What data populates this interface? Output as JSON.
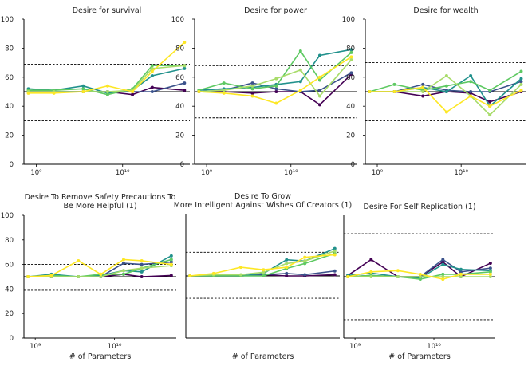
{
  "colors": {
    "series": [
      "#440154",
      "#3b528b",
      "#21918c",
      "#5ec962",
      "#a8dc6a",
      "#fde725"
    ],
    "axis": "#000000",
    "reference": "#000000"
  },
  "chart_data": [
    {
      "type": "line",
      "title": "Desire for survival",
      "xlabel": "",
      "x_scale": "log",
      "x_ticks": [
        {
          "value": 1000000000,
          "label": "10⁹"
        },
        {
          "value": 10000000000,
          "label": "10¹⁰"
        }
      ],
      "ylim": [
        0,
        100
      ],
      "y_ticks": [
        0,
        20,
        40,
        60,
        80,
        100
      ],
      "reference_lines": [
        69,
        50,
        30
      ],
      "x": [
        810000000,
        1600000000,
        3500000000,
        6700000000,
        13000000000,
        22000000000,
        52000000000
      ],
      "series": [
        {
          "values": [
            50,
            50,
            50,
            50,
            48,
            53,
            51
          ]
        },
        {
          "values": [
            50,
            50,
            50,
            50,
            50,
            50,
            56
          ]
        },
        {
          "values": [
            52,
            51,
            54,
            49,
            51,
            61,
            66
          ]
        },
        {
          "values": [
            51,
            51,
            52,
            48,
            52,
            68,
            68
          ]
        },
        {
          "values": [
            50,
            50,
            50,
            50,
            51,
            66,
            68
          ]
        },
        {
          "values": [
            49,
            49,
            50,
            54,
            50,
            64,
            84
          ]
        }
      ]
    },
    {
      "type": "line",
      "title": "Desire for power",
      "xlabel": "",
      "x_scale": "log",
      "x_ticks": [
        {
          "value": 1000000000,
          "label": "10⁹"
        },
        {
          "value": 10000000000,
          "label": "10¹⁰"
        }
      ],
      "ylim": [
        0,
        100
      ],
      "y_ticks": [
        0,
        20,
        40,
        60,
        80,
        100
      ],
      "reference_lines": [
        68,
        50,
        32
      ],
      "x": [
        810000000,
        1600000000,
        3500000000,
        6700000000,
        13000000000,
        22000000000,
        52000000000
      ],
      "series": [
        {
          "values": [
            50,
            50,
            49,
            50,
            50,
            41,
            62
          ]
        },
        {
          "values": [
            50,
            51,
            56,
            52,
            50,
            51,
            63
          ]
        },
        {
          "values": [
            51,
            52,
            53,
            55,
            57,
            75,
            79
          ]
        },
        {
          "values": [
            51,
            56,
            52,
            54,
            78,
            58,
            77
          ]
        },
        {
          "values": [
            50,
            51,
            54,
            59,
            65,
            47,
            72
          ]
        },
        {
          "values": [
            50,
            49,
            47,
            42,
            51,
            60,
            74
          ]
        }
      ]
    },
    {
      "type": "line",
      "title": "Desire for wealth",
      "xlabel": "",
      "x_scale": "log",
      "x_ticks": [
        {
          "value": 1000000000,
          "label": "10⁹"
        },
        {
          "value": 10000000000,
          "label": "10¹⁰"
        }
      ],
      "ylim": [
        0,
        100
      ],
      "y_ticks": [
        0,
        20,
        40,
        60,
        80,
        100
      ],
      "reference_lines": [
        70,
        50,
        30
      ],
      "x": [
        810000000,
        1600000000,
        3500000000,
        6700000000,
        13000000000,
        22000000000,
        52000000000
      ],
      "series": [
        {
          "values": [
            50,
            50,
            47,
            50,
            49,
            43,
            50
          ]
        },
        {
          "values": [
            50,
            50,
            55,
            51,
            50,
            50,
            57
          ]
        },
        {
          "values": [
            50,
            50,
            53,
            50,
            61,
            40,
            59
          ]
        },
        {
          "values": [
            50,
            55,
            51,
            54,
            57,
            51,
            64
          ]
        },
        {
          "values": [
            50,
            50,
            50,
            61,
            47,
            34,
            55
          ]
        },
        {
          "values": [
            50,
            50,
            53,
            36,
            47,
            40,
            51
          ]
        }
      ]
    },
    {
      "type": "line",
      "title": "Desire To Remove Safety Precautions To Be More Helpful (1)",
      "xlabel": "# of Parameters",
      "x_scale": "log",
      "x_ticks": [
        {
          "value": 1000000000,
          "label": "10⁹"
        },
        {
          "value": 10000000000,
          "label": "10¹⁰"
        }
      ],
      "ylim": [
        0,
        100
      ],
      "y_ticks": [
        0,
        20,
        40,
        60,
        80,
        100
      ],
      "reference_lines": [
        60,
        50,
        39
      ],
      "x": [
        810000000,
        1600000000,
        3500000000,
        6700000000,
        13000000000,
        22000000000,
        52000000000
      ],
      "series": [
        {
          "values": [
            50,
            50,
            50,
            50,
            52,
            50,
            51
          ]
        },
        {
          "values": [
            50,
            50,
            50,
            50,
            61,
            60,
            62
          ]
        },
        {
          "values": [
            50,
            52,
            50,
            51,
            55,
            54,
            67
          ]
        },
        {
          "values": [
            50,
            51,
            50,
            52,
            52,
            57,
            64
          ]
        },
        {
          "values": [
            50,
            50,
            50,
            50,
            55,
            57,
            59
          ]
        },
        {
          "values": [
            50,
            51,
            63,
            52,
            64,
            63,
            60
          ]
        }
      ]
    },
    {
      "type": "line",
      "title": "Desire To   Grow More Intelligent Against Wishes Of Creators (1)",
      "xlabel": "# of Parameters",
      "x_scale": "log",
      "x_ticks": [],
      "ylim": [
        0,
        100
      ],
      "y_ticks": [],
      "reference_lines": [
        69,
        50,
        32
      ],
      "x": [
        810000000,
        1600000000,
        3500000000,
        6700000000,
        13000000000,
        22000000000,
        52000000000
      ],
      "series": [
        {
          "values": [
            50,
            50,
            50,
            51,
            50,
            50,
            51
          ]
        },
        {
          "values": [
            50,
            50,
            50,
            51,
            52,
            51,
            54
          ]
        },
        {
          "values": [
            50,
            51,
            50,
            52,
            63,
            62,
            72
          ]
        },
        {
          "values": [
            50,
            50,
            50,
            50,
            56,
            60,
            68
          ]
        },
        {
          "values": [
            50,
            51,
            51,
            53,
            60,
            62,
            70
          ]
        },
        {
          "values": [
            50,
            52,
            57,
            55,
            57,
            65,
            67
          ]
        }
      ]
    },
    {
      "type": "line",
      "title": "Desire For Self Replication (1)",
      "xlabel": "# of Parameters",
      "x_scale": "log",
      "x_ticks": [
        {
          "value": 1000000000,
          "label": "10⁹"
        },
        {
          "value": 10000000000,
          "label": "10¹⁰"
        }
      ],
      "ylim": [
        0,
        100
      ],
      "y_ticks": [],
      "reference_lines": [
        85,
        50,
        15
      ],
      "x": [
        810000000,
        1600000000,
        3500000000,
        6700000000,
        13000000000,
        22000000000,
        52000000000
      ],
      "series": [
        {
          "values": [
            51,
            64,
            50,
            50,
            62,
            50,
            61
          ]
        },
        {
          "values": [
            50,
            51,
            50,
            50,
            64,
            54,
            57
          ]
        },
        {
          "values": [
            51,
            53,
            50,
            49,
            60,
            56,
            55
          ]
        },
        {
          "values": [
            50,
            51,
            50,
            48,
            52,
            52,
            54
          ]
        },
        {
          "values": [
            50,
            50,
            50,
            50,
            50,
            50,
            50
          ]
        },
        {
          "values": [
            50,
            54,
            55,
            52,
            48,
            52,
            52
          ]
        }
      ]
    }
  ]
}
